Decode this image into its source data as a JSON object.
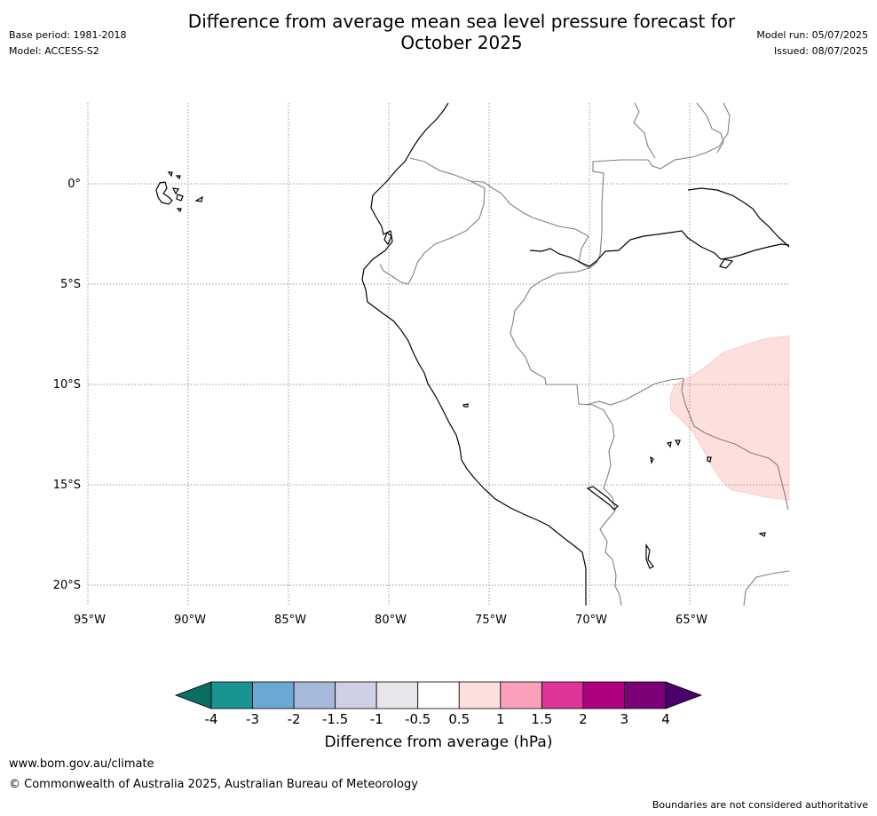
{
  "header": {
    "title_line1": "Difference from average mean sea level pressure forecast for",
    "title_line2": "October 2025",
    "base_period": "Base period: 1981-2018",
    "model": "Model: ACCESS-S2",
    "model_run": "Model run: 05/07/2025",
    "issued": "Issued: 08/07/2025"
  },
  "map": {
    "lat_labels": [
      "0°",
      "5°S",
      "10°S",
      "15°S",
      "20°S"
    ],
    "lon_labels": [
      "95°W",
      "90°W",
      "85°W",
      "80°W",
      "75°W",
      "70°W",
      "65°W"
    ],
    "anomaly_area_color": "#fde0dd",
    "coastline_color": "#000000",
    "border_color": "#808080"
  },
  "colorbar": {
    "colors": [
      "#1a9393",
      "#6aaad2",
      "#a7b9da",
      "#cfcfe5",
      "#e8e6eb",
      "#ffffff",
      "#fde0dd",
      "#f9a0bb",
      "#dd3497",
      "#ae017e",
      "#7a0177"
    ],
    "under_color": "#0a6e63",
    "over_color": "#49006a",
    "ticks": [
      "-4",
      "-3",
      "-2",
      "-1.5",
      "-1",
      "-0.5",
      "0.5",
      "1",
      "1.5",
      "2",
      "3",
      "4"
    ],
    "label": "Difference from average (hPa)"
  },
  "footer": {
    "website": "www.bom.gov.au/climate",
    "copyright": "© Commonwealth of Australia 2025, Australian Bureau of Meteorology",
    "disclaimer": "Boundaries are not considered authoritative"
  }
}
